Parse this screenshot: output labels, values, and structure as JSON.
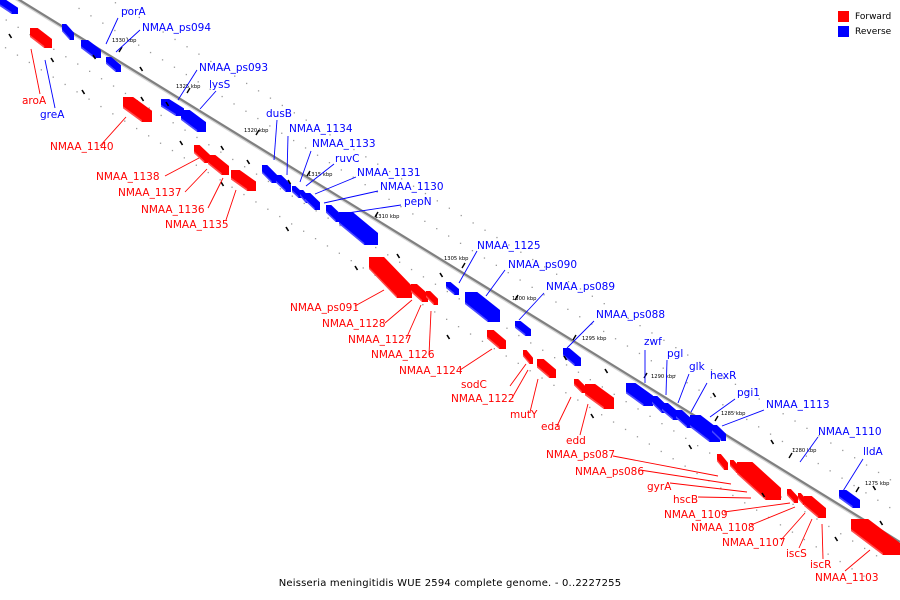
{
  "caption": "Neisseria meningitidis WUE 2594 complete genome. - 0..2227255",
  "legend": [
    {
      "label": "Forward",
      "color": "#ff0000"
    },
    {
      "label": "Reverse",
      "color": "#0000ff"
    }
  ],
  "colors": {
    "forward": "#ff0000",
    "reverse": "#0000ff",
    "axis": "#808080"
  },
  "ticks": [
    "1330 kbp",
    "1325 kbp",
    "1320 kbp",
    "1315 kbp",
    "1310 kbp",
    "1305 kbp",
    "1300 kbp",
    "1295 kbp",
    "1290 kbp",
    "1285 kbp",
    "1280 kbp",
    "1275 kbp"
  ],
  "genes": [
    {
      "label": "porA",
      "strand": "reverse"
    },
    {
      "label": "NMAA_ps094",
      "strand": "reverse"
    },
    {
      "label": "aroA",
      "strand": "forward"
    },
    {
      "label": "greA",
      "strand": "reverse"
    },
    {
      "label": "NMAA_ps093",
      "strand": "reverse"
    },
    {
      "label": "lysS",
      "strand": "reverse"
    },
    {
      "label": "NMAA_1140",
      "strand": "forward"
    },
    {
      "label": "dusB",
      "strand": "reverse"
    },
    {
      "label": "NMAA_1134",
      "strand": "reverse"
    },
    {
      "label": "NMAA_1133",
      "strand": "reverse"
    },
    {
      "label": "ruvC",
      "strand": "reverse"
    },
    {
      "label": "NMAA_1131",
      "strand": "reverse"
    },
    {
      "label": "NMAA_1130",
      "strand": "reverse"
    },
    {
      "label": "pepN",
      "strand": "reverse"
    },
    {
      "label": "NMAA_1138",
      "strand": "forward"
    },
    {
      "label": "NMAA_1137",
      "strand": "forward"
    },
    {
      "label": "NMAA_1136",
      "strand": "forward"
    },
    {
      "label": "NMAA_1135",
      "strand": "forward"
    },
    {
      "label": "NMAA_1125",
      "strand": "reverse"
    },
    {
      "label": "NMAA_ps090",
      "strand": "reverse"
    },
    {
      "label": "NMAA_ps089",
      "strand": "reverse"
    },
    {
      "label": "NMAA_ps088",
      "strand": "reverse"
    },
    {
      "label": "NMAA_ps091",
      "strand": "forward"
    },
    {
      "label": "NMAA_1128",
      "strand": "forward"
    },
    {
      "label": "NMAA_1127",
      "strand": "forward"
    },
    {
      "label": "NMAA_1126",
      "strand": "forward"
    },
    {
      "label": "NMAA_1124",
      "strand": "forward"
    },
    {
      "label": "zwf",
      "strand": "reverse"
    },
    {
      "label": "pgl",
      "strand": "reverse"
    },
    {
      "label": "glk",
      "strand": "reverse"
    },
    {
      "label": "hexR",
      "strand": "reverse"
    },
    {
      "label": "pgi1",
      "strand": "reverse"
    },
    {
      "label": "NMAA_1113",
      "strand": "reverse"
    },
    {
      "label": "sodC",
      "strand": "forward"
    },
    {
      "label": "NMAA_1122",
      "strand": "forward"
    },
    {
      "label": "mutY",
      "strand": "forward"
    },
    {
      "label": "eda",
      "strand": "forward"
    },
    {
      "label": "edd",
      "strand": "forward"
    },
    {
      "label": "NMAA_1110",
      "strand": "reverse"
    },
    {
      "label": "lldA",
      "strand": "reverse"
    },
    {
      "label": "NMAA_ps087",
      "strand": "forward"
    },
    {
      "label": "NMAA_ps086",
      "strand": "forward"
    },
    {
      "label": "gyrA",
      "strand": "forward"
    },
    {
      "label": "hscB",
      "strand": "forward"
    },
    {
      "label": "NMAA_1109",
      "strand": "forward"
    },
    {
      "label": "NMAA_1108",
      "strand": "forward"
    },
    {
      "label": "NMAA_1107",
      "strand": "forward"
    },
    {
      "label": "iscS",
      "strand": "forward"
    },
    {
      "label": "iscR",
      "strand": "forward"
    },
    {
      "label": "NMAA_1103",
      "strand": "forward"
    }
  ]
}
